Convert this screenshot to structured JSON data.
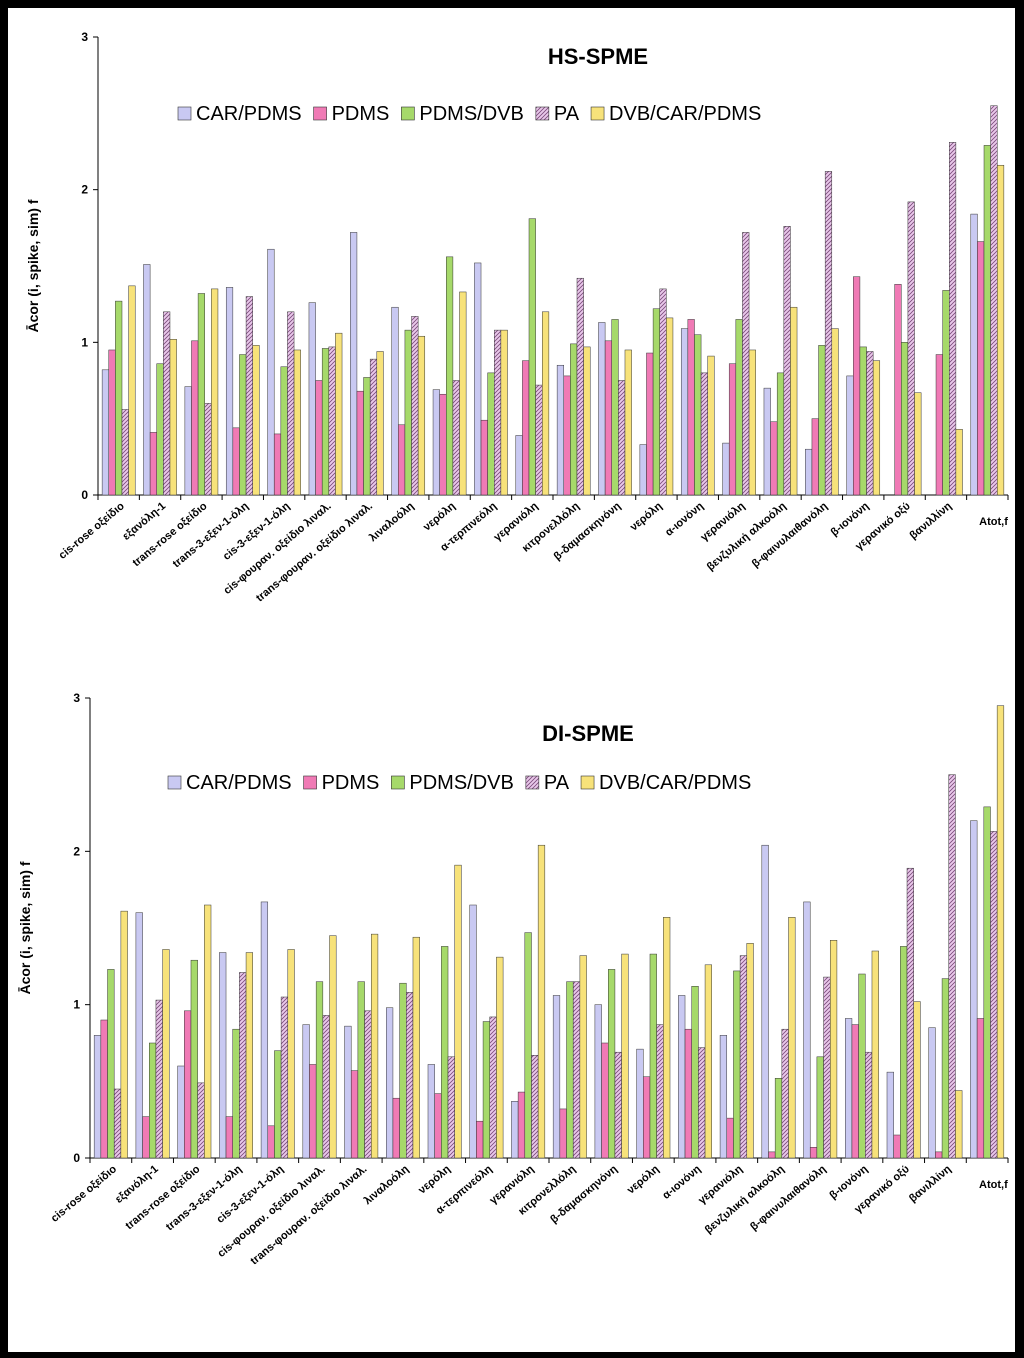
{
  "colors": {
    "CAR/PDMS": "#c9c9f2",
    "PDMS": "#f07ab5",
    "PDMS/DVB": "#a6d96a",
    "PA": "#e9c8ea",
    "DVB/CAR/PDMS": "#f7e27a"
  },
  "chart_data": [
    {
      "type": "bar",
      "title": "HS-SPME",
      "ylabel": "Ācor (i,  spike, sim) f",
      "xlabel": "",
      "ylim": [
        0,
        3
      ],
      "yticks": [
        "0",
        "1",
        "2",
        "3"
      ],
      "categories": [
        "cis-rose οξείδιο",
        "εξανόλη-1",
        "trans-rose οξείδιο",
        "trans-3-εξεν-1-όλη",
        "cis-3-εξεν-1-όλη",
        "cis-φουραν. οξείδιο λιναλ.",
        "trans-φουραν. οξείδιο λιναλ.",
        "λιναλοόλη",
        "νερόλη",
        "α-τερπινεόλη",
        "γερανιόλη",
        "κιτρονελλόλη",
        "β-δαμασκηνόνη",
        "νερόλη",
        "α-ιονόνη",
        "γερανιόλη",
        "βενζυλική αλκοόλη",
        "β-φαινυλαιθανόλη",
        "β-ιονόνη",
        "γερανικό οξύ",
        "βανιλλίνη",
        "Atot,f"
      ],
      "series": [
        {
          "name": "CAR/PDMS",
          "values": [
            0.82,
            1.51,
            0.71,
            1.36,
            1.61,
            1.26,
            1.72,
            1.23,
            0.69,
            1.52,
            0.39,
            0.85,
            1.13,
            0.33,
            1.09,
            0.34,
            0.7,
            0.3,
            0.78,
            0,
            0,
            1.84
          ]
        },
        {
          "name": "PDMS",
          "values": [
            0.95,
            0.41,
            1.01,
            0.44,
            0.4,
            0.75,
            0.68,
            0.46,
            0.66,
            0.49,
            0.88,
            0.78,
            1.01,
            0.93,
            1.15,
            0.86,
            0.48,
            0.5,
            1.43,
            1.38,
            0.92,
            1.66
          ]
        },
        {
          "name": "PDMS/DVB",
          "values": [
            1.27,
            0.86,
            1.32,
            0.92,
            0.84,
            0.96,
            0.77,
            1.08,
            1.56,
            0.8,
            1.81,
            0.99,
            1.15,
            1.22,
            1.05,
            1.15,
            0.8,
            0.98,
            0.97,
            1.0,
            1.34,
            2.29
          ]
        },
        {
          "name": "PA",
          "values": [
            0.56,
            1.2,
            0.6,
            1.3,
            1.2,
            0.97,
            0.89,
            1.17,
            0.75,
            1.08,
            0.72,
            1.42,
            0.75,
            1.35,
            0.8,
            1.72,
            1.76,
            2.12,
            0.94,
            1.92,
            2.31,
            2.55
          ]
        },
        {
          "name": "DVB/CAR/PDMS",
          "values": [
            1.37,
            1.02,
            1.35,
            0.98,
            0.95,
            1.06,
            0.94,
            1.04,
            1.33,
            1.08,
            1.2,
            0.97,
            0.95,
            1.16,
            0.91,
            0.95,
            1.23,
            1.09,
            0.88,
            0.67,
            0.43,
            2.16
          ]
        }
      ]
    },
    {
      "type": "bar",
      "title": "DI-SPME",
      "ylabel": "Ācor (i,  spike, sim) f",
      "xlabel": "",
      "ylim": [
        0,
        3
      ],
      "yticks": [
        "0",
        "1",
        "2",
        "3"
      ],
      "categories": [
        "cis-rose οξείδιο",
        "εξανόλη-1",
        "trans-rose οξείδιο",
        "trans-3-εξεν-1-όλη",
        "cis-3-εξεν-1-όλη",
        "cis-φουραν. οξείδιο λιναλ.",
        "trans-φουραν. οξείδιο λιναλ.",
        "λιναλοόλη",
        "νερόλη",
        "α-τερπινεόλη",
        "γερανιόλη",
        "κιτρονελλόλη",
        "β-δαμασκηνόνη",
        "νερόλη",
        "α-ιονόνη",
        "γερανιόλη",
        "βενζυλική αλκοόλη",
        "β-φαινυλαιθανόλη",
        "β-ιονόνη",
        "γερανικό οξύ",
        "βανιλλίνη",
        "Atot,f"
      ],
      "series": [
        {
          "name": "CAR/PDMS",
          "values": [
            0.8,
            1.6,
            0.6,
            1.34,
            1.67,
            0.87,
            0.86,
            0.98,
            0.61,
            1.65,
            0.37,
            1.06,
            1.0,
            0.71,
            1.06,
            0.8,
            2.04,
            1.67,
            0.91,
            0.56,
            0.85,
            2.2
          ]
        },
        {
          "name": "PDMS",
          "values": [
            0.9,
            0.27,
            0.96,
            0.27,
            0.21,
            0.61,
            0.57,
            0.39,
            0.42,
            0.24,
            0.43,
            0.32,
            0.75,
            0.53,
            0.84,
            0.26,
            0.04,
            0.07,
            0.87,
            0.15,
            0.04,
            0.91
          ]
        },
        {
          "name": "PDMS/DVB",
          "values": [
            1.23,
            0.75,
            1.29,
            0.84,
            0.7,
            1.15,
            1.15,
            1.14,
            1.38,
            0.89,
            1.47,
            1.15,
            1.23,
            1.33,
            1.12,
            1.22,
            0.52,
            0.66,
            1.2,
            1.38,
            1.17,
            2.29
          ]
        },
        {
          "name": "PA",
          "values": [
            0.45,
            1.03,
            0.49,
            1.21,
            1.05,
            0.93,
            0.96,
            1.08,
            0.66,
            0.92,
            0.67,
            1.15,
            0.69,
            0.87,
            0.72,
            1.32,
            0.84,
            1.18,
            0.69,
            1.89,
            2.5,
            2.13
          ]
        },
        {
          "name": "DVB/CAR/PDMS",
          "values": [
            1.61,
            1.36,
            1.65,
            1.34,
            1.36,
            1.45,
            1.46,
            1.44,
            1.91,
            1.31,
            2.04,
            1.32,
            1.33,
            1.57,
            1.26,
            1.4,
            1.57,
            1.42,
            1.35,
            1.02,
            0.44,
            2.95
          ]
        }
      ]
    }
  ]
}
